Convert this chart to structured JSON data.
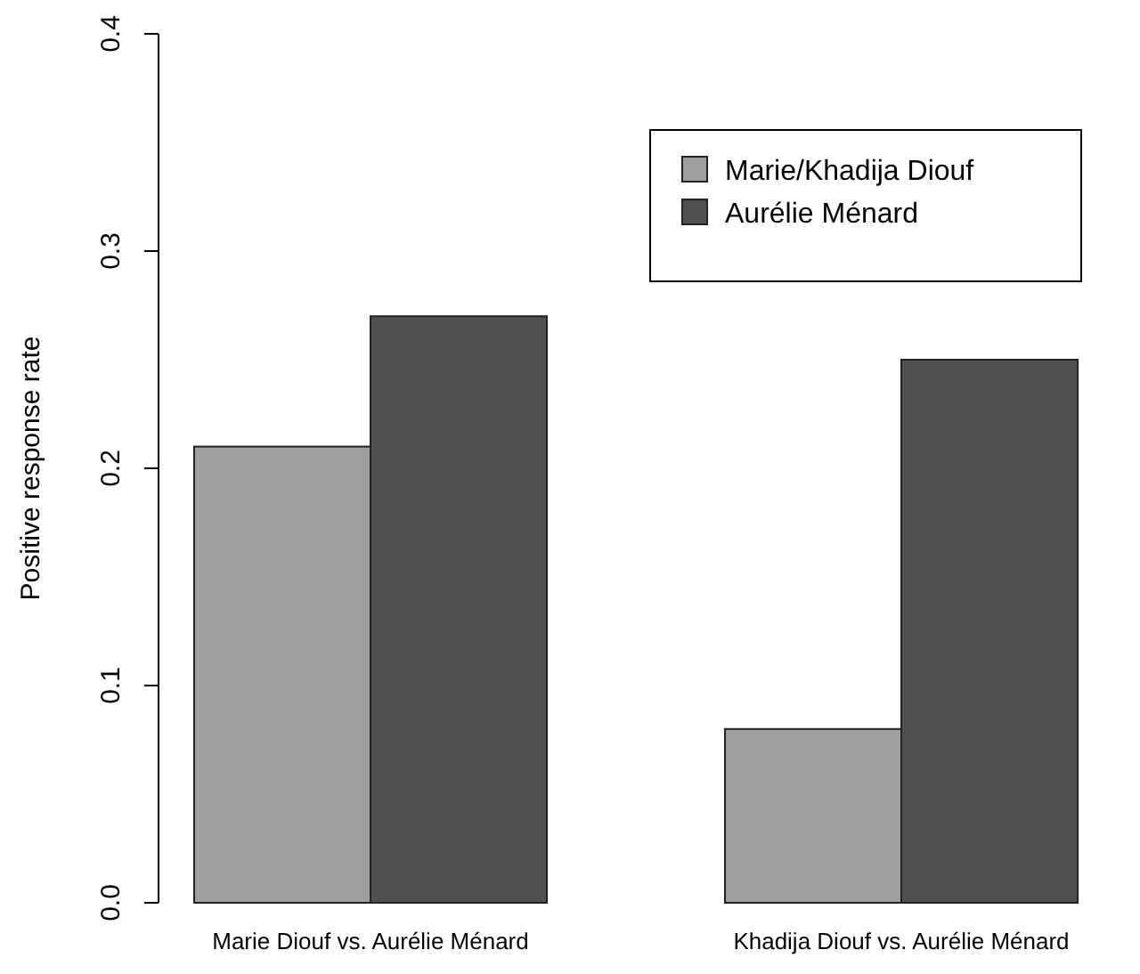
{
  "chart_data": {
    "type": "bar",
    "ylabel": "Positive response rate",
    "categories": [
      "Marie Diouf vs. Aurélie Ménard",
      "Khadija Diouf vs. Aurélie Ménard"
    ],
    "series": [
      {
        "name": "Marie/Khadija Diouf",
        "color": "#9e9e9e",
        "values": [
          0.21,
          0.08
        ]
      },
      {
        "name": "Aurélie Ménard",
        "color": "#505050",
        "values": [
          0.27,
          0.25
        ]
      }
    ],
    "ylim": [
      0,
      0.4
    ],
    "yticks": [
      {
        "value": 0,
        "label": "0.0"
      },
      {
        "value": 0.1,
        "label": "0.1"
      },
      {
        "value": 0.2,
        "label": "0.2"
      },
      {
        "value": 0.3,
        "label": "0.3"
      },
      {
        "value": 0.4,
        "label": "0.4"
      }
    ],
    "legend": "top right",
    "grid": false
  }
}
